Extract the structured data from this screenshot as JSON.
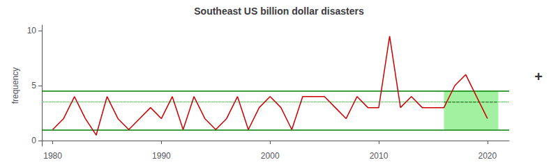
{
  "chart_data": {
    "type": "line",
    "title": "Southeast US billion dollar disasters",
    "ylabel": "frequency",
    "x": [
      1980,
      1981,
      1982,
      1983,
      1984,
      1985,
      1986,
      1987,
      1988,
      1989,
      1990,
      1991,
      1992,
      1993,
      1994,
      1995,
      1996,
      1997,
      1998,
      1999,
      2000,
      2001,
      2002,
      2003,
      2004,
      2005,
      2006,
      2007,
      2008,
      2009,
      2010,
      2011,
      2012,
      2013,
      2014,
      2015,
      2016,
      2017,
      2018,
      2019,
      2020
    ],
    "values": [
      1,
      2,
      4,
      2,
      0.5,
      4,
      2,
      1,
      2,
      3,
      2,
      4,
      1,
      4,
      2,
      1,
      2,
      4,
      1,
      3,
      4,
      3,
      1,
      4,
      4,
      4,
      3,
      2,
      4,
      3,
      3,
      9.5,
      3,
      4,
      3,
      3,
      3,
      5,
      6,
      4,
      2
    ],
    "color": "#cc0000",
    "xlim": [
      1979,
      2022
    ],
    "ylim": [
      -0.5,
      10.5
    ],
    "xticks": [
      1980,
      1990,
      2000,
      2010,
      2020
    ],
    "yticks": [
      0,
      5,
      10
    ],
    "grid": false,
    "span": {
      "x": [
        2016,
        2021
      ],
      "y": [
        1.0,
        4.5
      ],
      "color": "#90ee90"
    },
    "segment": {
      "x": [
        2016,
        2021
      ],
      "y": 3.5,
      "color": "#000000",
      "line_style": "dashed"
    },
    "hlines": [
      {
        "y": 3.5,
        "color": "#00cc00",
        "line_style": "dotted"
      },
      {
        "y": 4.5,
        "color": "#008000",
        "line_style": "solid"
      },
      {
        "y": 1.0,
        "color": "#008000",
        "line_style": "solid"
      }
    ],
    "annotations": [
      "+"
    ]
  }
}
